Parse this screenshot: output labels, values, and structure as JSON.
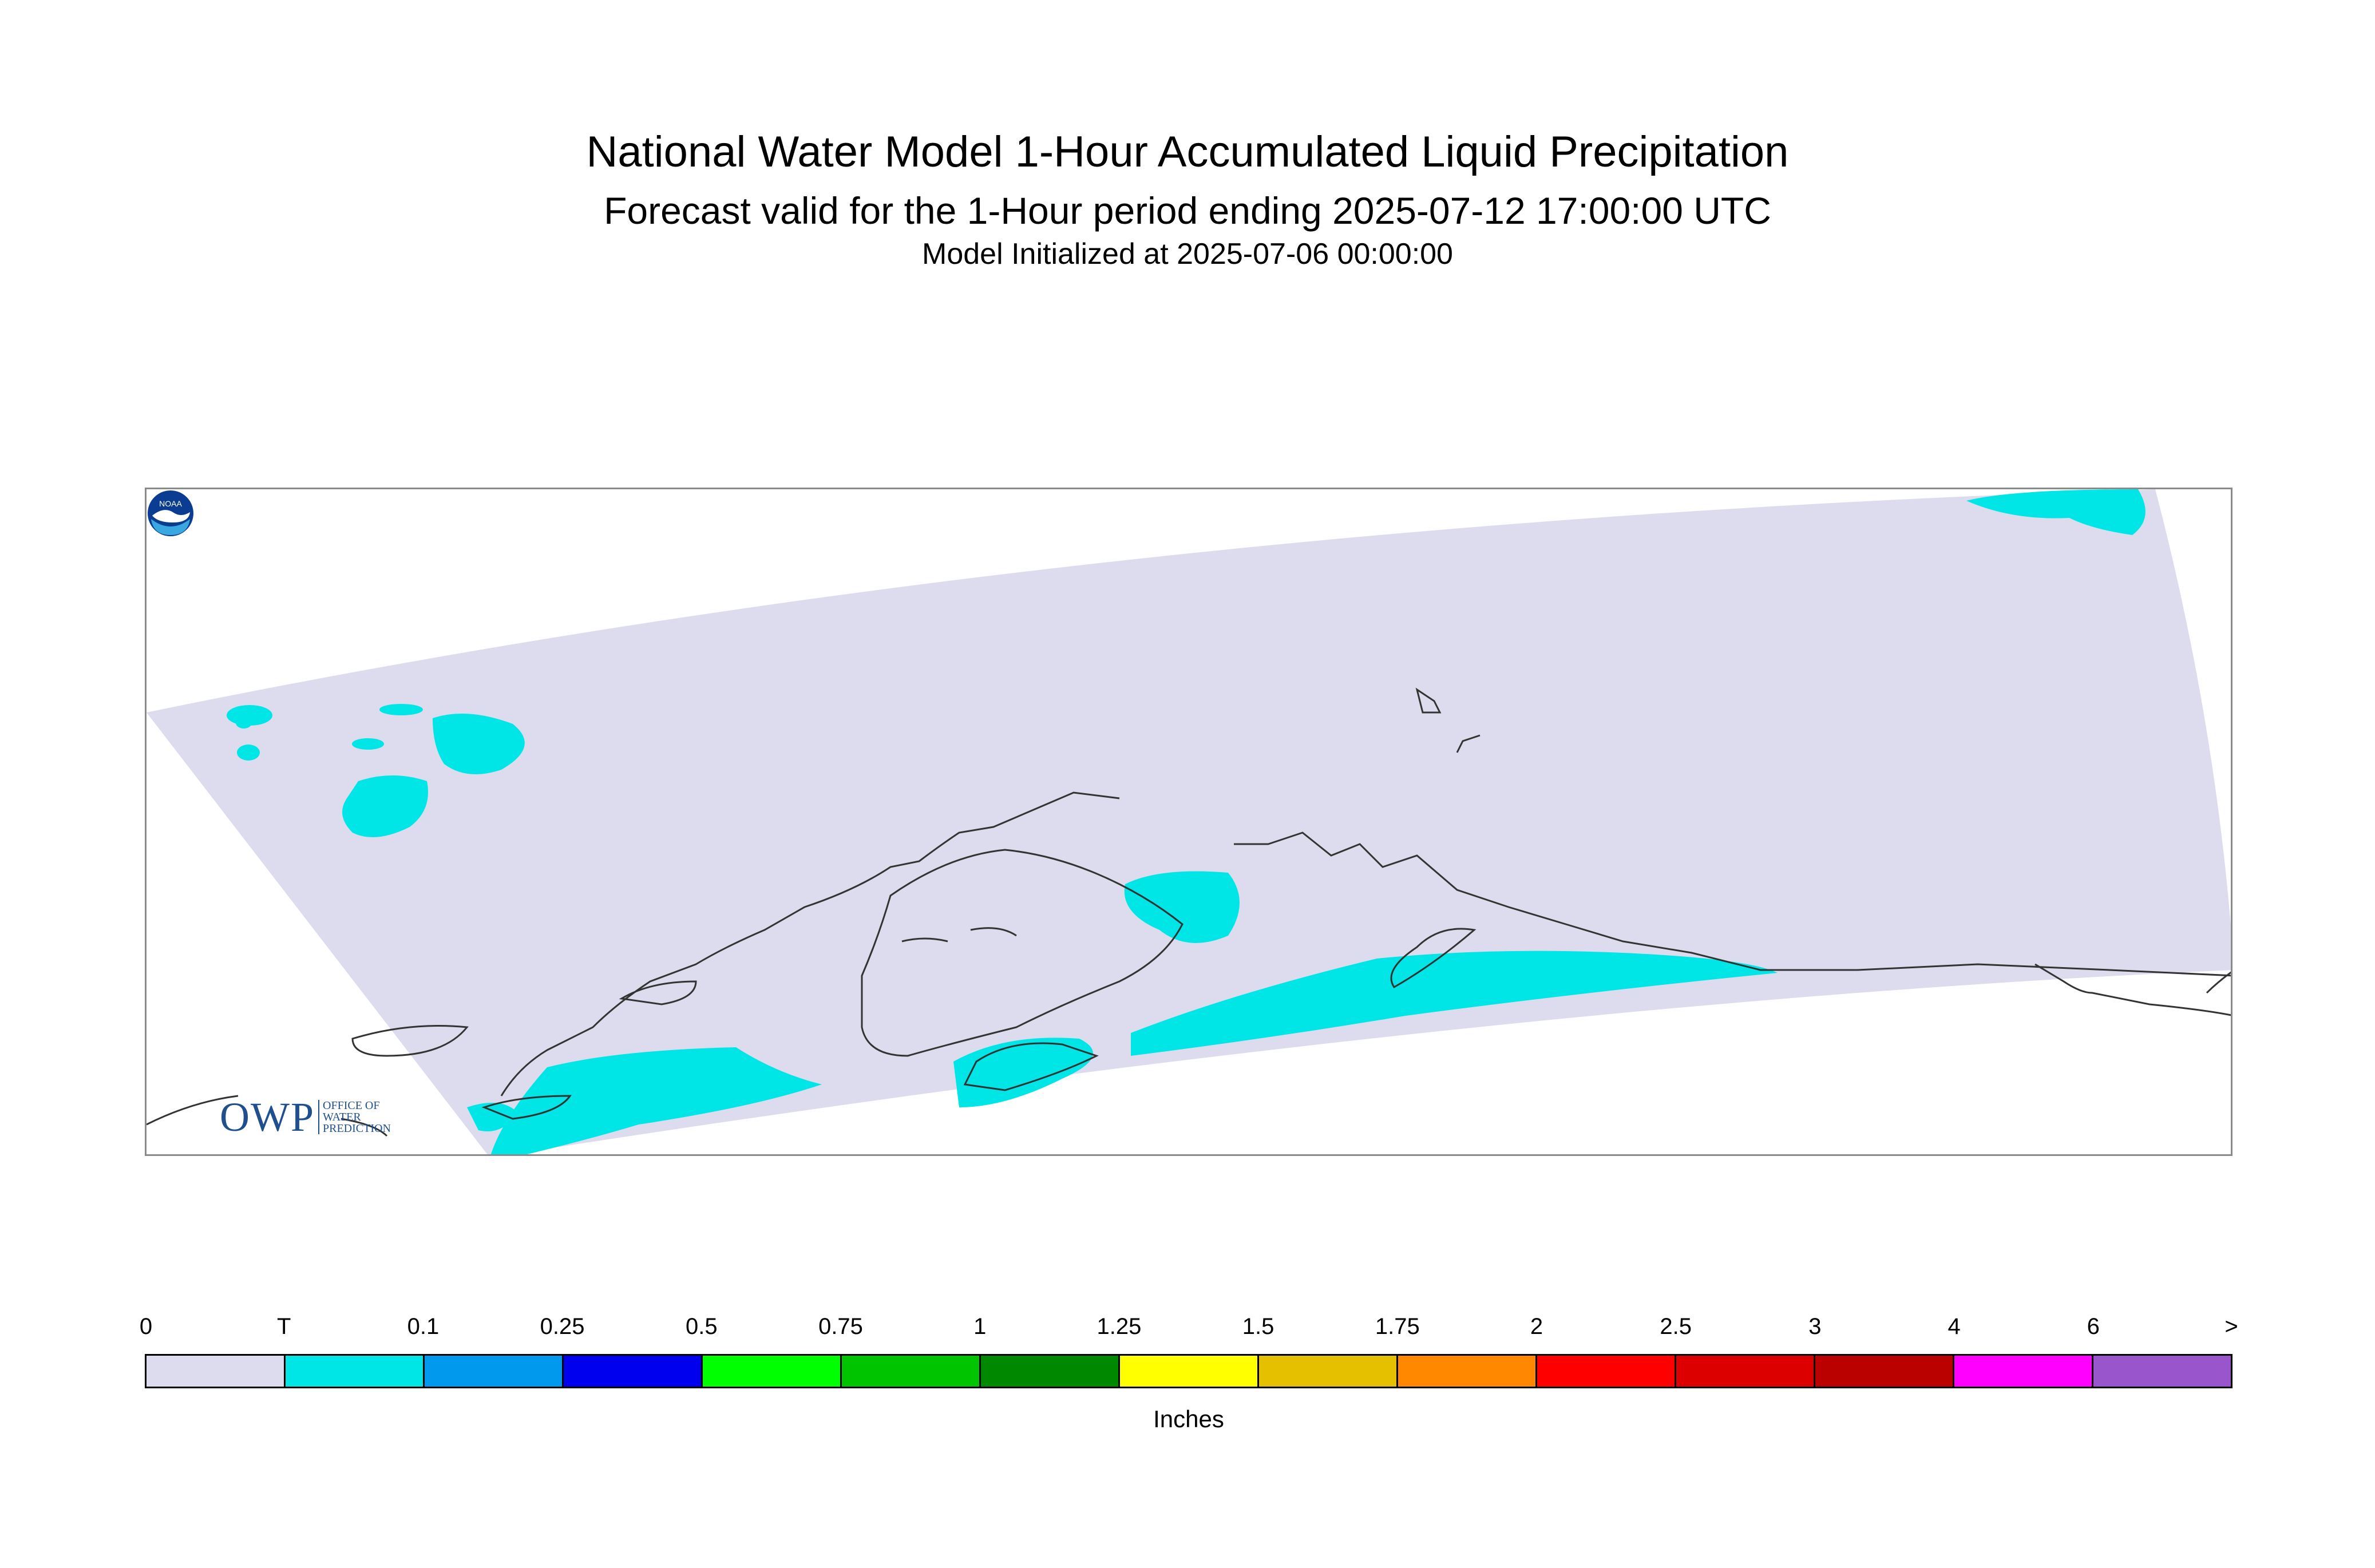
{
  "title": {
    "main": "National Water Model 1-Hour Accumulated Liquid Precipitation",
    "forecast": "Forecast valid for the 1-Hour period ending 2025-07-12 17:00:00 UTC",
    "initialized": "Model Initialized at 2025-07-06 00:00:00"
  },
  "map": {
    "domain_fill_color": "#dcdcee",
    "precip_trace_color": "#00e5e5",
    "coastline_color": "#333333"
  },
  "logos": {
    "owp_mark": "OWP",
    "owp_text_lines": [
      "OFFICE OF",
      "WATER",
      "PREDICTION"
    ],
    "noaa_text": "NOAA"
  },
  "legend": {
    "unit": "Inches",
    "tick_labels": [
      "0",
      "T",
      "0.1",
      "0.25",
      "0.5",
      "0.75",
      "1",
      "1.25",
      "1.5",
      "1.75",
      "2",
      "2.5",
      "3",
      "4",
      "6",
      ">"
    ],
    "colors": [
      "#dcdcee",
      "#00e5e5",
      "#0099ee",
      "#0000ee",
      "#00ff00",
      "#00c400",
      "#008800",
      "#ffff00",
      "#e5c000",
      "#ff8800",
      "#ff0000",
      "#dd0000",
      "#bb0000",
      "#ff00ff",
      "#9955cc"
    ]
  }
}
